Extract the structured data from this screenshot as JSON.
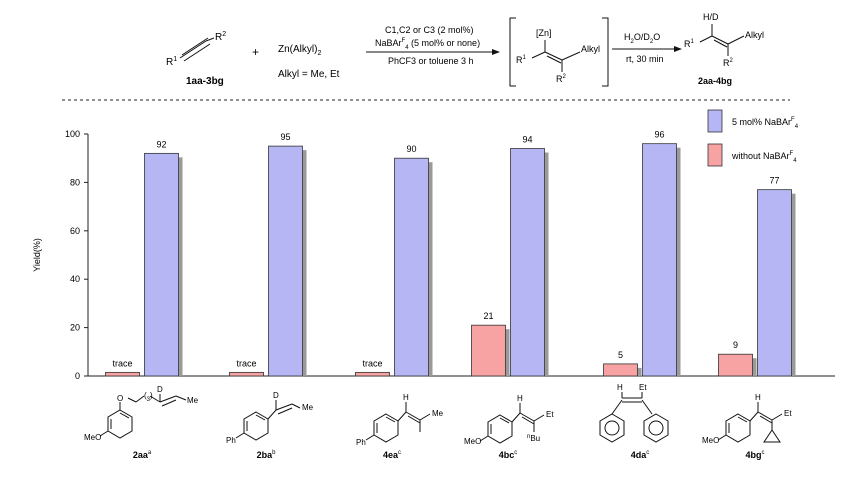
{
  "scheme": {
    "reactant1_label": "1aa-3bg",
    "reactant1_r1": "R",
    "reactant1_r1_sup": "1",
    "reactant1_r2": "R",
    "reactant1_r2_sup": "2",
    "plus": "+",
    "reagent_pre": "Zn(Alkyl)",
    "reagent_sub": "2",
    "alkyl_note": "Alkyl = Me, Et",
    "cond_cat": "C1,C2 or C3 (2 mol%)",
    "cond_salt_pre": "NaBAr",
    "cond_salt_sup": "F",
    "cond_salt_sub": "4",
    "cond_salt_post": " (5 mol% or none)",
    "cond_solvent": "PhCF3 or toluene 3 h",
    "intermediate_zn": "[Zn]",
    "intermediate_alkyl": "Alkyl",
    "intermediate_r1": "R",
    "intermediate_r1_sup": "1",
    "intermediate_r2": "R",
    "intermediate_r2_sup": "2",
    "quench_top_pre": "H",
    "quench_top_sub": "2",
    "quench_top_mid": "O/D",
    "quench_top_sub2": "2",
    "quench_top_post": "O",
    "quench_bottom": "rt, 30 min",
    "product_hd": "H/D",
    "product_alkyl": "Alkyl",
    "product_r1": "R",
    "product_r1_sup": "1",
    "product_r2": "R",
    "product_r2_sup": "2",
    "product_label": "2aa-4bg"
  },
  "chart_data": {
    "type": "bar",
    "ylabel": "Yield(%)",
    "ylim": [
      0,
      100
    ],
    "yticks": [
      0,
      20,
      40,
      60,
      80,
      100
    ],
    "categories": [
      "2aa",
      "2ba",
      "4ea",
      "4bc",
      "4da",
      "4bg"
    ],
    "category_sup": [
      "a",
      "b",
      "c",
      "c",
      "c",
      "c"
    ],
    "series": [
      {
        "name": "without NaBArF4",
        "legend_pre": "without NaBAr",
        "legend_sup": "F",
        "legend_sub": "4",
        "color": "#f7a3a3",
        "values": [
          1.5,
          1.5,
          1.5,
          21,
          5,
          9
        ],
        "labels": [
          "trace",
          "trace",
          "trace",
          "21",
          "5",
          "9"
        ]
      },
      {
        "name": "5 mol% NaBArF4",
        "legend_pre": "5 mol% NaBAr",
        "legend_sup": "F",
        "legend_sub": "4",
        "color": "#b6b6f5",
        "values": [
          92,
          95,
          90,
          94,
          96,
          77
        ],
        "labels": [
          "92",
          "95",
          "90",
          "94",
          "96",
          "77"
        ]
      }
    ],
    "grid": false,
    "legend_position": "top-right"
  },
  "structures": [
    {
      "subs": [
        "MeO",
        "O",
        "3",
        "D",
        "Me"
      ]
    },
    {
      "subs": [
        "Ph",
        "D",
        "Me"
      ]
    },
    {
      "subs": [
        "Ph",
        "H",
        "Me"
      ]
    },
    {
      "subs": [
        "MeO",
        "H",
        "Et",
        "n",
        "Bu"
      ]
    },
    {
      "subs": [
        "H",
        "Et"
      ]
    },
    {
      "subs": [
        "MeO",
        "H",
        "Et"
      ]
    }
  ],
  "colors": {
    "bar_stroke": "#333333",
    "shadow": "#9a9a9a",
    "text": "#111111"
  }
}
